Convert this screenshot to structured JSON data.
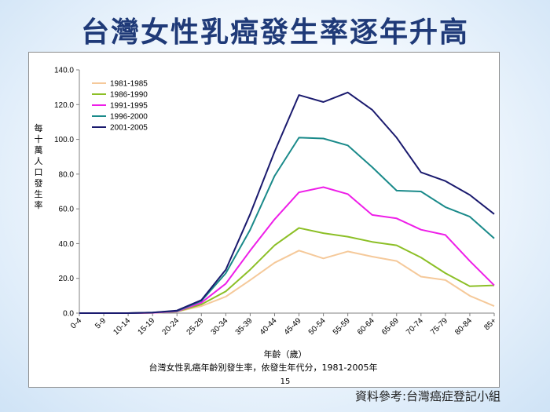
{
  "slide": {
    "title": "台灣女性乳癌發生率逐年升高",
    "source_note": "資料參考:台灣癌症登記小組"
  },
  "chart_data": {
    "type": "line",
    "caption": "台灣女性乳癌年齡別發生率，依發生年代分，1981-2005年",
    "xlabel": "年齡（歲）",
    "ylabel": "每十萬人口發生率",
    "page_number": "15",
    "categories": [
      "0-4",
      "5-9",
      "10-14",
      "15-19",
      "20-24",
      "25-29",
      "30-34",
      "35-39",
      "40-44",
      "45-49",
      "50-54",
      "55-59",
      "60-64",
      "65-69",
      "70-74",
      "75-79",
      "80-84",
      "85+"
    ],
    "ylim": [
      0,
      140
    ],
    "yticks": [
      "0.0",
      "20.0",
      "40.0",
      "60.0",
      "80.0",
      "100.0",
      "120.0",
      "140.0"
    ],
    "grid": false,
    "legend_position": "top-left",
    "series": [
      {
        "name": "1981-1985",
        "color": "#f5c99a",
        "values": [
          0,
          0,
          0,
          0.2,
          0.8,
          4,
          9.5,
          19,
          29,
          36,
          31.5,
          35.5,
          32.5,
          30,
          21,
          19,
          10,
          4
        ]
      },
      {
        "name": "1986-1990",
        "color": "#8cbf26",
        "values": [
          0,
          0,
          0,
          0.2,
          0.9,
          5,
          12.5,
          25,
          39,
          49,
          46,
          44,
          41,
          39,
          32,
          23,
          15.5,
          16
        ]
      },
      {
        "name": "1991-1995",
        "color": "#ee1ee8",
        "values": [
          0,
          0,
          0,
          0.2,
          1,
          6,
          17,
          36,
          54,
          69.5,
          72.5,
          68.5,
          56.5,
          54.5,
          48,
          45,
          30,
          16
        ]
      },
      {
        "name": "1996-2000",
        "color": "#1a8a8a",
        "values": [
          0,
          0,
          0,
          0.3,
          1.2,
          7,
          23,
          48,
          79,
          101,
          100.5,
          96.5,
          84,
          70.5,
          70,
          61,
          55.5,
          43
        ]
      },
      {
        "name": "2001-2005",
        "color": "#1a1a6e",
        "values": [
          0,
          0,
          0,
          0.3,
          1.5,
          7.5,
          25,
          57,
          93,
          125.5,
          121.5,
          127,
          117,
          101,
          81,
          76,
          68,
          57
        ]
      }
    ]
  }
}
